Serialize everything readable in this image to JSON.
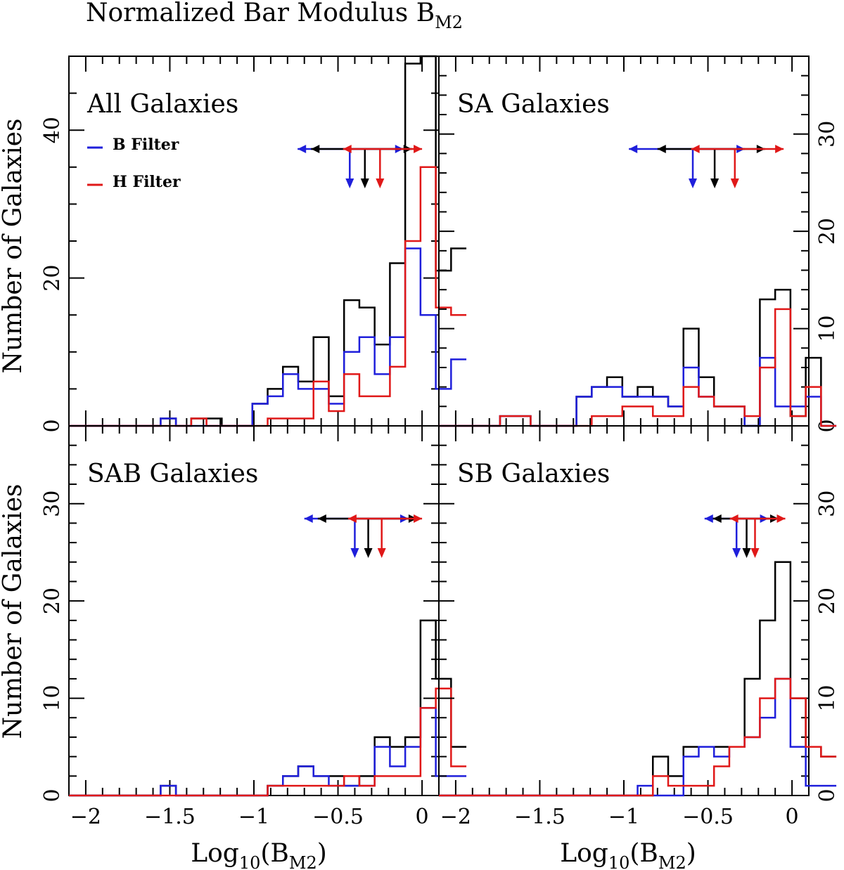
{
  "figure": {
    "title_main": "Normalized Bar Modulus B",
    "title_sub": "M2",
    "xlabel_main": "Log",
    "xlabel_sub10": "10",
    "xlabel_open": "(B",
    "xlabel_sub": "M2",
    "xlabel_close": ")",
    "ylabel": "Number of Galaxies",
    "legend": [
      {
        "label": "B Filter",
        "color": "#1f1fdb"
      },
      {
        "label": "H Filter",
        "color": "#e01818"
      }
    ]
  },
  "colors": {
    "all": "#000000",
    "B": "#1f1fdb",
    "H": "#e01818"
  },
  "chart_data": [
    {
      "type": "histogram",
      "title": "All Galaxies",
      "xlim": [
        -2.1,
        0.1
      ],
      "ylim": [
        0,
        50
      ],
      "xticks": [
        -2,
        -1.5,
        -1,
        -0.5,
        0
      ],
      "xtick_labels": [
        "−2",
        "−1.5",
        "−1",
        "−0.5",
        "0"
      ],
      "yticks": [
        0,
        20,
        40
      ],
      "ytick_labels": [
        "0",
        "20",
        "40"
      ],
      "ytick_side": "left",
      "bin_width": 0.0909,
      "bin_start": -2.1,
      "series": [
        {
          "name": "All",
          "color": "black",
          "values": [
            0,
            0,
            0,
            0,
            0,
            0,
            1,
            0,
            1,
            1,
            0,
            0,
            3,
            5,
            8,
            6,
            12,
            4,
            17,
            16,
            11,
            22,
            49,
            50,
            21,
            24
          ]
        },
        {
          "name": "B Filter",
          "color": "blue",
          "values": [
            0,
            0,
            0,
            0,
            0,
            0,
            1,
            0,
            0,
            0,
            0,
            0,
            3,
            4,
            7,
            5,
            5,
            3,
            10,
            12,
            7,
            12,
            24,
            15,
            5,
            9
          ]
        },
        {
          "name": "H Filter",
          "color": "red",
          "values": [
            0,
            0,
            0,
            0,
            0,
            0,
            0,
            0,
            1,
            0,
            0,
            0,
            0,
            1,
            1,
            1,
            6,
            2,
            7,
            4,
            4,
            8,
            25,
            35,
            16,
            15
          ]
        }
      ],
      "arrows": [
        {
          "name": "B Filter",
          "color": "blue",
          "mean": -0.43,
          "left": -0.74,
          "right": -0.11
        },
        {
          "name": "All",
          "color": "black",
          "mean": -0.34,
          "left": -0.66,
          "right": -0.06
        },
        {
          "name": "H Filter",
          "color": "red",
          "mean": -0.25,
          "left": -0.47,
          "right": 0.0
        }
      ]
    },
    {
      "type": "histogram",
      "title": "SA Galaxies",
      "xlim": [
        -2.1,
        0.1
      ],
      "ylim": [
        0,
        38
      ],
      "xticks": [
        -2,
        -1.5,
        -1,
        -0.5,
        0
      ],
      "xtick_labels": [
        "−2",
        "−1.5",
        "−1",
        "−0.5",
        "0"
      ],
      "yticks": [
        0,
        10,
        20,
        30
      ],
      "ytick_labels": [
        "0",
        "10",
        "20",
        "30"
      ],
      "ytick_side": "right",
      "bin_width": 0.0909,
      "bin_start": -2.1,
      "series": [
        {
          "name": "All",
          "color": "black",
          "values": [
            0,
            0,
            0,
            0,
            1,
            1,
            0,
            0,
            0,
            3,
            4,
            5,
            3,
            4,
            3,
            2,
            10,
            5,
            2,
            2,
            0,
            13,
            14,
            1,
            7,
            0
          ]
        },
        {
          "name": "B Filter",
          "color": "blue",
          "values": [
            0,
            0,
            0,
            0,
            1,
            1,
            0,
            0,
            0,
            3,
            4,
            4,
            3,
            3,
            3,
            2,
            6,
            3,
            2,
            2,
            0,
            7,
            2,
            2,
            3,
            0
          ]
        },
        {
          "name": "H Filter",
          "color": "red",
          "values": [
            0,
            0,
            0,
            0,
            1,
            1,
            0,
            0,
            0,
            0,
            1,
            1,
            2,
            2,
            1,
            1,
            4,
            3,
            2,
            2,
            1,
            6,
            12,
            1,
            4,
            0
          ]
        }
      ],
      "arrows": [
        {
          "name": "B Filter",
          "color": "blue",
          "mean": -0.59,
          "left": -0.97,
          "right": -0.28
        },
        {
          "name": "All",
          "color": "black",
          "mean": -0.46,
          "left": -0.8,
          "right": -0.16
        },
        {
          "name": "H Filter",
          "color": "red",
          "mean": -0.34,
          "left": -0.6,
          "right": -0.05
        }
      ]
    },
    {
      "type": "histogram",
      "title": "SAB Galaxies",
      "xlim": [
        -2.1,
        0.1
      ],
      "ylim": [
        0,
        38
      ],
      "xticks": [
        -2,
        -1.5,
        -1,
        -0.5,
        0
      ],
      "xtick_labels": [
        "−2",
        "−1.5",
        "−1",
        "−0.5",
        "0"
      ],
      "yticks": [
        0,
        10,
        20,
        30
      ],
      "ytick_labels": [
        "0",
        "10",
        "20",
        "30"
      ],
      "ytick_side": "left",
      "bin_width": 0.0909,
      "bin_start": -2.1,
      "series": [
        {
          "name": "All",
          "color": "black",
          "values": [
            0,
            0,
            0,
            0,
            0,
            0,
            1,
            0,
            0,
            0,
            0,
            0,
            0,
            1,
            2,
            3,
            2,
            2,
            1,
            2,
            6,
            5,
            6,
            18,
            12,
            5
          ]
        },
        {
          "name": "B Filter",
          "color": "blue",
          "values": [
            0,
            0,
            0,
            0,
            0,
            0,
            1,
            0,
            0,
            0,
            0,
            0,
            0,
            1,
            2,
            3,
            2,
            1,
            1,
            1,
            5,
            3,
            5,
            9,
            2,
            2
          ]
        },
        {
          "name": "H Filter",
          "color": "red",
          "values": [
            0,
            0,
            0,
            0,
            0,
            0,
            0,
            0,
            0,
            0,
            0,
            0,
            0,
            1,
            1,
            1,
            1,
            1,
            2,
            1,
            2,
            2,
            2,
            9,
            11,
            3
          ]
        }
      ],
      "arrows": [
        {
          "name": "B Filter",
          "color": "blue",
          "mean": -0.4,
          "left": -0.7,
          "right": -0.08
        },
        {
          "name": "All",
          "color": "black",
          "mean": -0.32,
          "left": -0.62,
          "right": -0.03
        },
        {
          "name": "H Filter",
          "color": "red",
          "mean": -0.24,
          "left": -0.44,
          "right": 0.0
        }
      ]
    },
    {
      "type": "histogram",
      "title": "SB Galaxies",
      "xlim": [
        -2.1,
        0.1
      ],
      "ylim": [
        0,
        38
      ],
      "xticks": [
        -2,
        -1.5,
        -1,
        -0.5,
        0
      ],
      "xtick_labels": [
        "−2",
        "−1.5",
        "−1",
        "−0.5",
        "0"
      ],
      "yticks": [
        0,
        10,
        20,
        30
      ],
      "ytick_labels": [
        "0",
        "10",
        "20",
        "30"
      ],
      "ytick_side": "right",
      "bin_width": 0.0909,
      "bin_start": -2.1,
      "series": [
        {
          "name": "All",
          "color": "black",
          "values": [
            0,
            0,
            0,
            0,
            0,
            0,
            0,
            0,
            0,
            0,
            0,
            0,
            0,
            0,
            4,
            2,
            5,
            5,
            5,
            5,
            12,
            18,
            24,
            10,
            5,
            4
          ]
        },
        {
          "name": "B Filter",
          "color": "blue",
          "values": [
            0,
            0,
            0,
            0,
            0,
            0,
            0,
            0,
            0,
            0,
            0,
            0,
            0,
            1,
            0,
            0,
            4,
            5,
            4,
            5,
            6,
            8,
            12,
            5,
            1,
            1
          ]
        },
        {
          "name": "H Filter",
          "color": "red",
          "values": [
            0,
            0,
            0,
            0,
            0,
            0,
            0,
            0,
            0,
            0,
            0,
            0,
            0,
            0,
            2,
            1,
            1,
            1,
            3,
            5,
            6,
            10,
            12,
            10,
            5,
            4
          ]
        }
      ],
      "arrows": [
        {
          "name": "B Filter",
          "color": "blue",
          "mean": -0.33,
          "left": -0.52,
          "right": -0.14
        },
        {
          "name": "All",
          "color": "black",
          "mean": -0.27,
          "left": -0.47,
          "right": -0.08
        },
        {
          "name": "H Filter",
          "color": "red",
          "mean": -0.22,
          "left": -0.37,
          "right": -0.04
        }
      ]
    }
  ]
}
